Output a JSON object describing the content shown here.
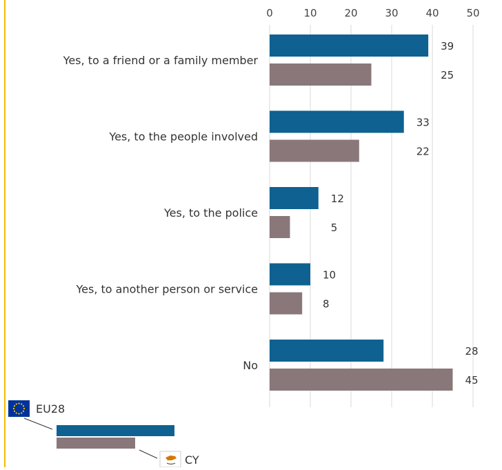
{
  "chart_data": {
    "type": "bar",
    "orientation": "horizontal",
    "categories": [
      "Yes, to a friend or a family member",
      "Yes, to the people involved",
      "Yes, to the police",
      "Yes, to another person or service",
      "No"
    ],
    "series": [
      {
        "name": "EU28",
        "values": [
          39,
          33,
          12,
          10,
          28
        ]
      },
      {
        "name": "CY",
        "values": [
          25,
          22,
          5,
          8,
          45
        ]
      }
    ],
    "xlim": [
      0,
      50
    ],
    "xticks": [
      "0",
      "10",
      "20",
      "30",
      "40",
      "50"
    ],
    "x_axis_position": "top",
    "grid": true,
    "legend_position": "bottom-left",
    "colors": {
      "EU28": "#0e6190",
      "CY": "#897779",
      "grid": "#d9d9d9",
      "accent_rule": "#f5b800"
    },
    "legend_icons": {
      "EU28": "eu-flag-icon",
      "CY": "cyprus-flag-icon"
    }
  }
}
